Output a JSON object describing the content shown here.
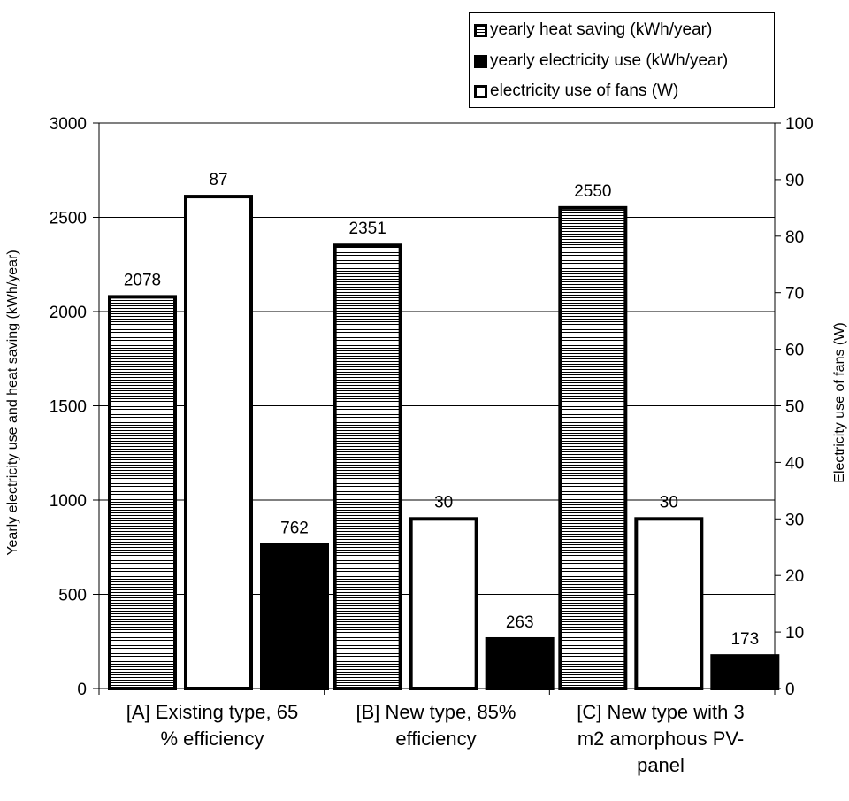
{
  "chart_data": {
    "type": "bar",
    "categories": [
      "[A] Existing type, 65 % efficiency",
      "[B] New type, 85% efficiency",
      "[C] New type with 3 m2 amorphous PV-panel"
    ],
    "category_lines": [
      [
        "[A] Existing type, 65",
        "% efficiency"
      ],
      [
        "[B] New type, 85%",
        "efficiency"
      ],
      [
        "[C] New type with 3",
        "m2 amorphous PV-",
        "panel"
      ]
    ],
    "series": [
      {
        "name": "yearly heat saving (kWh/year)",
        "axis": "left",
        "fill": "horizontal-hatch",
        "values": [
          2078,
          2351,
          2550
        ],
        "labels": [
          "2078",
          "2351",
          "2550"
        ]
      },
      {
        "name": "electricity use of fans (W)",
        "axis": "right",
        "fill": "white",
        "values": [
          87,
          30,
          30
        ],
        "labels": [
          "87",
          "30",
          "30"
        ]
      },
      {
        "name": "yearly electricity use (kWh/year)",
        "axis": "left",
        "fill": "black",
        "values": [
          762,
          263,
          173
        ],
        "labels": [
          "762",
          "263",
          "173"
        ]
      }
    ],
    "legend": {
      "placement": "top-right",
      "items": [
        {
          "label": "yearly heat saving (kWh/year)",
          "swatch": "hatch"
        },
        {
          "label": "yearly electricity use (kWh/year)",
          "swatch": "solid"
        },
        {
          "label": "electricity use of fans (W)",
          "swatch": "empty"
        }
      ]
    },
    "ylabel": "Yearly electricity use and heat saving (kWh/year)",
    "y2label": "Electricity use of fans (W)",
    "ylim": [
      0,
      3000
    ],
    "y2lim": [
      0,
      100
    ],
    "yticks": [
      0,
      500,
      1000,
      1500,
      2000,
      2500,
      3000
    ],
    "y2ticks": [
      0,
      10,
      20,
      30,
      40,
      50,
      60,
      70,
      80,
      90,
      100
    ],
    "grid": true,
    "colors": {
      "bar_stroke": "#000000",
      "hatch": "#000000",
      "background": "#ffffff"
    }
  }
}
